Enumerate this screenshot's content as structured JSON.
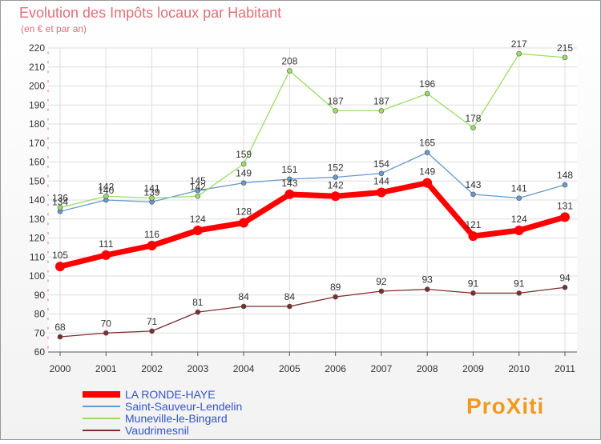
{
  "chart_data": {
    "type": "line",
    "title": "Evolution des Impôts locaux par Habitant",
    "subtitle": "(en € et par an)",
    "xlabel": "",
    "ylabel": "",
    "x": [
      "2000",
      "2001",
      "2002",
      "2003",
      "2004",
      "2005",
      "2006",
      "2007",
      "2008",
      "2009",
      "2010",
      "2011"
    ],
    "ylim": [
      60,
      220
    ],
    "yticks": [
      60,
      70,
      80,
      90,
      100,
      110,
      120,
      130,
      140,
      150,
      160,
      170,
      180,
      190,
      200,
      210,
      220
    ],
    "grid": true,
    "legend_position": "bottom-left",
    "series": [
      {
        "name": "LA RONDE-HAYE",
        "color": "#ff0000",
        "emphasis": true,
        "values": [
          105,
          111,
          116,
          124,
          128,
          143,
          142,
          144,
          149,
          121,
          124,
          131
        ]
      },
      {
        "name": "Saint-Sauveur-Lendelin",
        "color": "#6699cc",
        "values": [
          134,
          140,
          139,
          145,
          149,
          151,
          152,
          154,
          165,
          143,
          141,
          148
        ]
      },
      {
        "name": "Muneville-le-Bingard",
        "color": "#99dd66",
        "values": [
          136,
          142,
          141,
          142,
          159,
          208,
          187,
          187,
          196,
          178,
          217,
          215
        ]
      },
      {
        "name": "Vaudrimesnil",
        "color": "#7a2e2e",
        "values": [
          68,
          70,
          71,
          81,
          84,
          84,
          89,
          92,
          93,
          91,
          91,
          94
        ]
      }
    ]
  },
  "branding": {
    "logo_text": "ProXiti"
  }
}
